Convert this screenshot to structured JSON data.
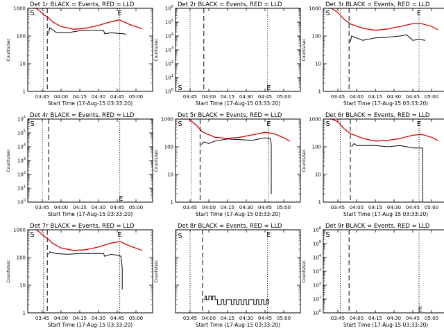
{
  "figure": {
    "xlabel_common": "Start Time (17-Aug-15 03:33:20)",
    "ylabel_common": "Counts/sec"
  },
  "chart_data": [
    {
      "type": "line",
      "title": "Det 1r BLACK = Events, RED = LLD",
      "xlabel": "Start Time (17-Aug-15 03:33:20)",
      "ylabel": "Counts/sec",
      "x_ticks": [
        "03:45",
        "04:00",
        "04:15",
        "04:30",
        "04:45",
        "05:00"
      ],
      "y_scale": "log",
      "ylim": [
        1,
        1000
      ],
      "y_ticks": [
        "1",
        "10",
        "100",
        "1000"
      ],
      "markers": {
        "S_time": "03:37",
        "dotted_left": "03:46",
        "dashed": "03:49",
        "dotted_right": "04:47",
        "E_time": "04:47"
      },
      "series": [
        {
          "color": "#000000",
          "x": [
            "03:50",
            "03:51",
            "03:56",
            "04:05",
            "04:15",
            "04:25",
            "04:34",
            "04:35",
            "04:40",
            "04:45",
            "04:50",
            "04:52"
          ],
          "y": [
            120,
            200,
            135,
            130,
            155,
            160,
            160,
            120,
            130,
            125,
            120,
            115
          ]
        },
        {
          "color": "#d40000",
          "x": [
            "03:37",
            "03:40",
            "03:43",
            "03:46",
            "03:50",
            "03:53",
            "04:00",
            "04:10",
            "04:20",
            "04:30",
            "04:40",
            "04:47",
            "04:55",
            "05:05"
          ],
          "y": [
            1000,
            1000,
            800,
            600,
            450,
            330,
            220,
            175,
            190,
            240,
            330,
            380,
            260,
            180
          ]
        }
      ]
    },
    {
      "type": "line",
      "title": "Det 2r BLACK = Events, RED = LLD",
      "xlabel": "Start Time (17-Aug-15 03:33:20)",
      "ylabel": "Counts/sec",
      "x_ticks": [
        "03:45",
        "04:00",
        "04:15",
        "04:30",
        "04:45",
        "05:00"
      ],
      "y_scale": "log",
      "ylim": [
        1,
        1000000
      ],
      "y_ticks": [
        "10^0",
        "10^1",
        "10^2",
        "10^3",
        "10^4",
        "10^5",
        "10^6"
      ],
      "markers": {
        "S_time": "03:37",
        "dotted_left": "03:45",
        "dashed": "03:56",
        "dotted_right": "04:47",
        "E_time": "04:48"
      },
      "series": []
    },
    {
      "type": "line",
      "title": "Det 3r BLACK = Events, RED = LLD",
      "xlabel": "Start Time (17-Aug-15 03:33:20)",
      "ylabel": "Counts/sec",
      "x_ticks": [
        "03:45",
        "04:00",
        "04:15",
        "04:30",
        "04:45",
        "05:00"
      ],
      "y_scale": "log",
      "ylim": [
        1,
        1000
      ],
      "y_ticks": [
        "1",
        "10",
        "100",
        "1000"
      ],
      "markers": {
        "S_time": "03:37",
        "dotted_left": "03:47",
        "dashed": "03:54",
        "dotted_right": "04:50",
        "E_time": "04:50"
      },
      "series": [
        {
          "color": "#000000",
          "x": [
            "03:55",
            "03:56",
            "04:00",
            "04:05",
            "04:15",
            "04:25",
            "04:35",
            "04:40",
            "04:45",
            "04:50",
            "04:55"
          ],
          "y": [
            60,
            100,
            85,
            70,
            85,
            90,
            100,
            110,
            70,
            75,
            70
          ]
        },
        {
          "color": "#d40000",
          "x": [
            "03:37",
            "03:40",
            "03:45",
            "03:50",
            "03:55",
            "04:05",
            "04:15",
            "04:25",
            "04:35",
            "04:45",
            "04:52",
            "05:00",
            "05:05"
          ],
          "y": [
            1000,
            1000,
            700,
            400,
            270,
            190,
            160,
            180,
            220,
            280,
            280,
            220,
            170
          ]
        }
      ]
    },
    {
      "type": "line",
      "title": "Det 4r BLACK = Events, RED = LLD",
      "xlabel": "Start Time (17-Aug-15 03:33:20)",
      "ylabel": "Counts/sec",
      "x_ticks": [
        "03:45",
        "04:00",
        "04:15",
        "04:30",
        "04:45",
        "05:00"
      ],
      "y_scale": "log",
      "ylim": [
        1,
        1000000
      ],
      "y_ticks": [
        "10^0",
        "10^1",
        "10^2",
        "10^3",
        "10^4",
        "10^5",
        "10^6"
      ],
      "markers": {
        "S_time": "03:37",
        "dotted_left": "03:45",
        "dashed": "03:50",
        "dotted_right": "04:47",
        "E_time": "04:48"
      },
      "series": []
    },
    {
      "type": "line",
      "title": "Det 5r BLACK = Events, RED = LLD",
      "xlabel": "Start Time (17-Aug-15 03:33:20)",
      "ylabel": "Counts/sec",
      "x_ticks": [
        "03:45",
        "04:00",
        "04:15",
        "04:30",
        "04:45",
        "05:00"
      ],
      "y_scale": "log",
      "ylim": [
        1,
        1000
      ],
      "y_ticks": [
        "1",
        "10",
        "100",
        "1000"
      ],
      "markers": {
        "S_time": "03:37",
        "dotted_left": "03:46",
        "dashed": "03:53",
        "dotted_right": "04:48",
        "E_time": "04:48"
      },
      "series": [
        {
          "color": "#000000",
          "x": [
            "03:54",
            "03:56",
            "04:00",
            "04:05",
            "04:15",
            "04:25",
            "04:35",
            "04:40",
            "04:45",
            "04:49",
            "04:49.5",
            "04:50",
            "04:50"
          ],
          "y": [
            120,
            150,
            130,
            160,
            190,
            180,
            170,
            190,
            210,
            200,
            180,
            120,
            2
          ]
        },
        {
          "color": "#d40000",
          "x": [
            "03:37",
            "03:44",
            "03:50",
            "03:55",
            "04:05",
            "04:15",
            "04:25",
            "04:35",
            "04:45",
            "04:52",
            "05:00",
            "05:05"
          ],
          "y": [
            1000,
            1000,
            600,
            340,
            220,
            200,
            220,
            270,
            330,
            300,
            210,
            160
          ]
        }
      ]
    },
    {
      "type": "line",
      "title": "Det 6r BLACK = Events, RED = LLD",
      "xlabel": "Start Time (17-Aug-15 03:33:20)",
      "ylabel": "Counts/sec",
      "x_ticks": [
        "03:45",
        "04:00",
        "04:15",
        "04:30",
        "04:45",
        "05:00"
      ],
      "y_scale": "log",
      "ylim": [
        1,
        1000
      ],
      "y_ticks": [
        "1",
        "10",
        "100",
        "1000"
      ],
      "markers": {
        "S_time": "03:37",
        "dotted_left": "03:47",
        "dashed": "03:55",
        "dotted_right": "04:50",
        "E_time": "04:50"
      },
      "series": [
        {
          "color": "#000000",
          "x": [
            "03:56",
            "03:58",
            "04:00",
            "04:05",
            "04:15",
            "04:25",
            "04:35",
            "04:40",
            "04:45",
            "04:52",
            "04:53",
            "04:53"
          ],
          "y": [
            100,
            130,
            110,
            110,
            110,
            100,
            110,
            100,
            90,
            90,
            85,
            1
          ]
        },
        {
          "color": "#d40000",
          "x": [
            "03:37",
            "03:40",
            "03:45",
            "03:50",
            "03:55",
            "04:05",
            "04:15",
            "04:25",
            "04:35",
            "04:45",
            "04:52",
            "05:00",
            "05:05"
          ],
          "y": [
            1000,
            1000,
            800,
            450,
            300,
            200,
            160,
            170,
            200,
            260,
            280,
            220,
            170
          ]
        }
      ]
    },
    {
      "type": "line",
      "title": "Det 7r BLACK = Events, RED = LLD",
      "xlabel": "Start Time (17-Aug-15 03:33:20)",
      "ylabel": "Counts/sec",
      "x_ticks": [
        "03:45",
        "04:00",
        "04:15",
        "04:30",
        "04:45",
        "05:00"
      ],
      "y_scale": "log",
      "ylim": [
        1,
        1000
      ],
      "y_ticks": [
        "1",
        "10",
        "100",
        "1000"
      ],
      "markers": {
        "S_time": "03:37",
        "dotted_left": "03:46",
        "dashed": "03:49",
        "dotted_right": "04:47",
        "E_time": "04:47"
      },
      "series": [
        {
          "color": "#000000",
          "x": [
            "03:50",
            "03:51",
            "03:56",
            "04:05",
            "04:15",
            "04:25",
            "04:34",
            "04:35",
            "04:40",
            "04:45",
            "04:48",
            "04:49",
            "04:49"
          ],
          "y": [
            130,
            160,
            140,
            130,
            140,
            140,
            140,
            110,
            130,
            120,
            110,
            40,
            7
          ]
        },
        {
          "color": "#d40000",
          "x": [
            "03:37",
            "03:40",
            "03:43",
            "03:46",
            "03:50",
            "03:53",
            "04:00",
            "04:10",
            "04:20",
            "04:30",
            "04:40",
            "04:47",
            "04:55",
            "05:05"
          ],
          "y": [
            1000,
            1000,
            800,
            600,
            450,
            330,
            220,
            180,
            190,
            240,
            330,
            380,
            260,
            180
          ]
        }
      ]
    },
    {
      "type": "line",
      "title": "Det 8r BLACK = Events, RED = LLD",
      "xlabel": "Start Time (17-Aug-15 03:33:20)",
      "ylabel": "Counts/sec",
      "x_ticks": [
        "03:45",
        "04:00",
        "04:15",
        "04:30",
        "04:45",
        "05:00"
      ],
      "y_scale": "log",
      "ylim": [
        1,
        1000
      ],
      "y_ticks": [],
      "markers": {
        "S_time": "03:37",
        "dotted_left": "03:45",
        "dashed": "03:55",
        "dotted_right": "04:47",
        "E_time": "04:48"
      },
      "series": [
        {
          "color": "#000000",
          "x": [
            "03:56",
            "03:57",
            "03:58",
            "04:00",
            "04:02",
            "04:03",
            "04:05",
            "04:07",
            "04:10",
            "04:12",
            "04:14",
            "04:16",
            "04:18",
            "04:20",
            "04:22",
            "04:24",
            "04:26",
            "04:28",
            "04:30",
            "04:32",
            "04:34",
            "04:36",
            "04:38",
            "04:40",
            "04:42",
            "04:44",
            "04:46",
            "04:48"
          ],
          "y": [
            3,
            4,
            3,
            4,
            3,
            4,
            3,
            2,
            3,
            2,
            3,
            3,
            2,
            3,
            2,
            3,
            2,
            3,
            2,
            3,
            3,
            2,
            3,
            2,
            3,
            2,
            3,
            2
          ]
        }
      ]
    },
    {
      "type": "line",
      "title": "Det 9r BLACK = Events, RED = LLD",
      "xlabel": "Start Time (17-Aug-15 03:33:20)",
      "ylabel": "Counts/sec",
      "x_ticks": [
        "03:45",
        "04:00",
        "04:15",
        "04:30",
        "04:45",
        "05:00"
      ],
      "y_scale": "log",
      "ylim": [
        1,
        1000000
      ],
      "y_ticks": [
        "10^0",
        "10^1",
        "10^2",
        "10^3",
        "10^4",
        "10^5",
        "10^6"
      ],
      "markers": {
        "S_time": "03:37",
        "dotted_left": "03:47",
        "dashed": "03:54",
        "dotted_right": "04:50",
        "E_time": "04:51"
      },
      "series": []
    }
  ]
}
